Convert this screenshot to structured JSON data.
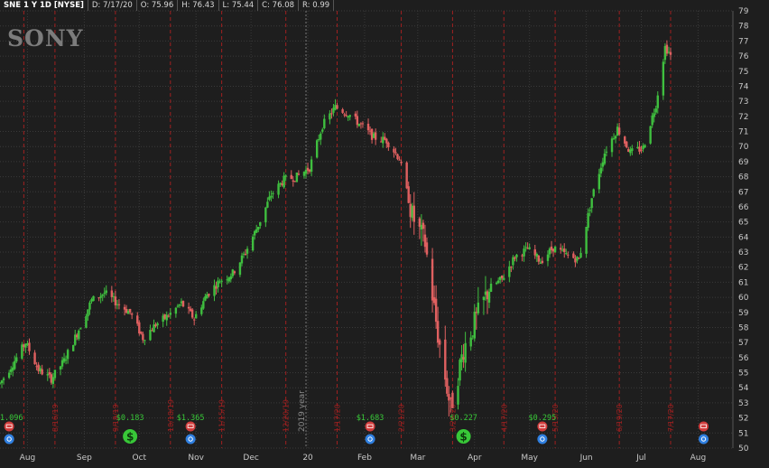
{
  "header": {
    "symbol": "SNE 1 Y 1D [NYSE]",
    "date": "D: 7/17/20",
    "open": "O: 75.96",
    "high": "H: 76.43",
    "low": "L: 75.44",
    "close": "C: 76.08",
    "range": "R: 0.99"
  },
  "brand": {
    "label": "SONY"
  },
  "colors": {
    "background": "#1e1e1e",
    "grid": "#3a3a3a",
    "up": "#3fbf3f",
    "down": "#e06060",
    "event_line": "#a02020",
    "dividend_text": "#38c838",
    "earnings": "#d23c3c",
    "split": "#2f7fe0"
  },
  "chart_data": {
    "type": "candlestick",
    "title": "",
    "xlabel": "",
    "ylabel": "",
    "ylim": [
      50,
      79
    ],
    "y_ticks": [
      50,
      51,
      52,
      53,
      54,
      55,
      56,
      57,
      58,
      59,
      60,
      61,
      62,
      63,
      64,
      65,
      66,
      67,
      68,
      69,
      70,
      71,
      72,
      73,
      74,
      75,
      76,
      77,
      78,
      79
    ],
    "grid": true,
    "x_range": [
      "2019-07-17",
      "2020-08-20"
    ],
    "x_ticks": [
      {
        "date": "2019-08-01",
        "label": "Aug"
      },
      {
        "date": "2019-09-01",
        "label": "Sep"
      },
      {
        "date": "2019-10-01",
        "label": "Oct"
      },
      {
        "date": "2019-11-01",
        "label": "Nov"
      },
      {
        "date": "2019-12-01",
        "label": "Dec"
      },
      {
        "date": "2020-01-01",
        "label": "20"
      },
      {
        "date": "2020-02-01",
        "label": "Feb"
      },
      {
        "date": "2020-03-01",
        "label": "Mar"
      },
      {
        "date": "2020-04-01",
        "label": "Apr"
      },
      {
        "date": "2020-05-01",
        "label": "May"
      },
      {
        "date": "2020-06-01",
        "label": "Jun"
      },
      {
        "date": "2020-07-01",
        "label": "Jul"
      },
      {
        "date": "2020-08-01",
        "label": "Aug"
      }
    ],
    "year_divider": {
      "date": "2019-12-31",
      "label": "2019 year"
    },
    "event_lines": [
      {
        "date": "2019-07-30",
        "label": ""
      },
      {
        "date": "2019-08-16",
        "label": "8/16/19"
      },
      {
        "date": "2019-09-18",
        "label": "9/18/19"
      },
      {
        "date": "2019-10-18",
        "label": "10/18/19"
      },
      {
        "date": "2019-11-15",
        "label": "11/15/19"
      },
      {
        "date": "2019-12-20",
        "label": "12/20/19"
      },
      {
        "date": "2020-01-17",
        "label": "1/17/20"
      },
      {
        "date": "2020-02-21",
        "label": "2/21/20"
      },
      {
        "date": "2020-03-20",
        "label": "3/20/20"
      },
      {
        "date": "2020-04-17",
        "label": "4/17/20"
      },
      {
        "date": "2020-05-15",
        "label": "5/15/20"
      },
      {
        "date": "2020-06-19",
        "label": "6/19/20"
      },
      {
        "date": "2020-07-17",
        "label": "7/17/20"
      }
    ],
    "dividends": [
      {
        "date": "2019-07-22",
        "label": "$1.096"
      },
      {
        "date": "2019-09-26",
        "label": "$0.183"
      },
      {
        "date": "2019-10-29",
        "label": "$1.365"
      },
      {
        "date": "2020-02-04",
        "label": "$1.683"
      },
      {
        "date": "2020-03-26",
        "label": "$0.227"
      },
      {
        "date": "2020-05-08",
        "label": "$0.295"
      }
    ],
    "earnings_markers": [
      "2019-07-22",
      "2019-10-29",
      "2020-02-04",
      "2020-05-08",
      "2020-08-04"
    ],
    "split_markers": [
      "2019-09-26",
      "2020-03-26"
    ],
    "price_anchors": [
      [
        "2019-07-17",
        54.3
      ],
      [
        "2019-07-24",
        55.6
      ],
      [
        "2019-07-31",
        57.0
      ],
      [
        "2019-08-07",
        55.2
      ],
      [
        "2019-08-14",
        54.6
      ],
      [
        "2019-08-21",
        55.8
      ],
      [
        "2019-08-28",
        57.6
      ],
      [
        "2019-09-05",
        59.8
      ],
      [
        "2019-09-12",
        60.3
      ],
      [
        "2019-09-19",
        59.6
      ],
      [
        "2019-09-26",
        59.0
      ],
      [
        "2019-10-03",
        57.3
      ],
      [
        "2019-10-10",
        58.2
      ],
      [
        "2019-10-17",
        58.8
      ],
      [
        "2019-10-24",
        59.6
      ],
      [
        "2019-10-31",
        58.6
      ],
      [
        "2019-11-07",
        60.2
      ],
      [
        "2019-11-14",
        61.1
      ],
      [
        "2019-11-21",
        61.6
      ],
      [
        "2019-11-28",
        63.0
      ],
      [
        "2019-12-05",
        64.8
      ],
      [
        "2019-12-12",
        66.8
      ],
      [
        "2019-12-19",
        67.8
      ],
      [
        "2019-12-26",
        68.0
      ],
      [
        "2020-01-02",
        68.6
      ],
      [
        "2020-01-09",
        71.4
      ],
      [
        "2020-01-16",
        72.6
      ],
      [
        "2020-01-23",
        72.2
      ],
      [
        "2020-01-30",
        71.4
      ],
      [
        "2020-02-06",
        70.6
      ],
      [
        "2020-02-13",
        70.4
      ],
      [
        "2020-02-20",
        69.2
      ],
      [
        "2020-02-27",
        65.4
      ],
      [
        "2020-03-05",
        63.6
      ],
      [
        "2020-03-12",
        57.5
      ],
      [
        "2020-03-19",
        52.6
      ],
      [
        "2020-03-26",
        56.6
      ],
      [
        "2020-04-02",
        58.6
      ],
      [
        "2020-04-09",
        60.6
      ],
      [
        "2020-04-16",
        61.2
      ],
      [
        "2020-04-23",
        62.7
      ],
      [
        "2020-04-30",
        63.2
      ],
      [
        "2020-05-07",
        62.4
      ],
      [
        "2020-05-14",
        63.3
      ],
      [
        "2020-05-21",
        62.8
      ],
      [
        "2020-05-28",
        62.5
      ],
      [
        "2020-06-04",
        66.6
      ],
      [
        "2020-06-11",
        69.6
      ],
      [
        "2020-06-18",
        71.2
      ],
      [
        "2020-06-25",
        69.6
      ],
      [
        "2020-07-02",
        69.9
      ],
      [
        "2020-07-09",
        72.8
      ],
      [
        "2020-07-14",
        76.6
      ],
      [
        "2020-07-17",
        76.08
      ]
    ]
  }
}
